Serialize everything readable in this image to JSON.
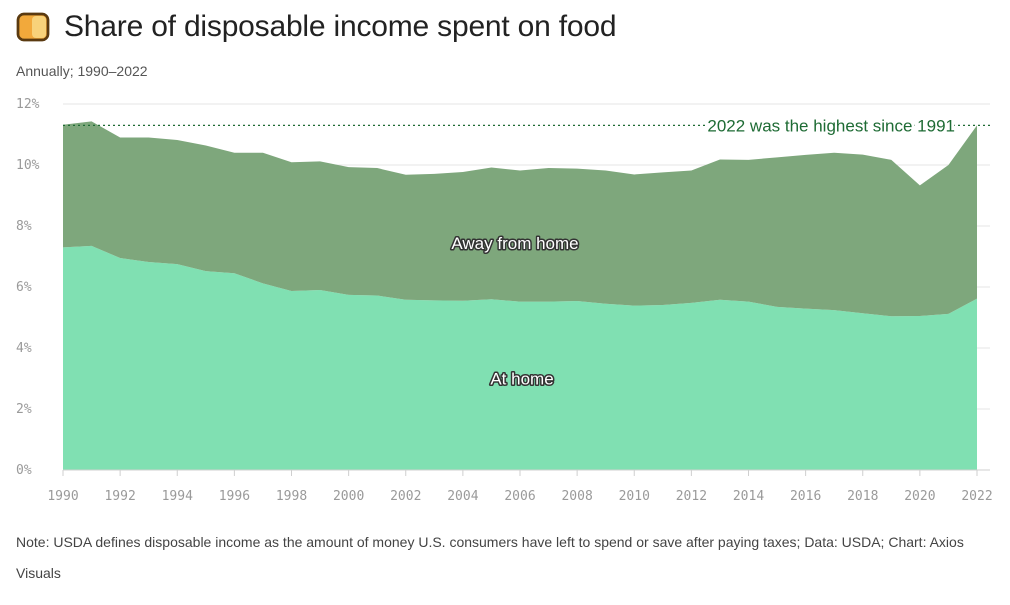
{
  "header": {
    "icon": "bread-icon",
    "title": "Share of disposable income spent on food",
    "subtitle": "Annually; 1990–2022"
  },
  "note": "Note: USDA defines disposable income as the amount of money U.S. consumers have left to spend or save after paying taxes; Data: USDA; Chart: Axios Visuals",
  "colors": {
    "at_home": "#80e0b2",
    "away_from_home": "#7ea77c",
    "annotation": "#1e6b34",
    "grid": "#e6e6e6"
  },
  "chart_data": {
    "type": "area",
    "stacked": true,
    "title": "Share of disposable income spent on food",
    "subtitle": "Annually; 1990–2022",
    "x": [
      1990,
      1991,
      1992,
      1993,
      1994,
      1995,
      1996,
      1997,
      1998,
      1999,
      2000,
      2001,
      2002,
      2003,
      2004,
      2005,
      2006,
      2007,
      2008,
      2009,
      2010,
      2011,
      2012,
      2013,
      2014,
      2015,
      2016,
      2017,
      2018,
      2019,
      2020,
      2021,
      2022
    ],
    "x_ticks": [
      1990,
      1992,
      1994,
      1996,
      1998,
      2000,
      2002,
      2004,
      2006,
      2008,
      2010,
      2012,
      2014,
      2016,
      2018,
      2020,
      2022
    ],
    "ylim": [
      0,
      12
    ],
    "y_ticks": [
      0,
      2,
      4,
      6,
      8,
      10,
      12
    ],
    "y_tick_labels": [
      "0%",
      "2%",
      "4%",
      "6%",
      "8%",
      "10%",
      "12%"
    ],
    "grid": true,
    "series": [
      {
        "name": "At home",
        "values": [
          7.3,
          7.35,
          6.95,
          6.82,
          6.75,
          6.52,
          6.45,
          6.12,
          5.87,
          5.9,
          5.74,
          5.72,
          5.58,
          5.56,
          5.55,
          5.6,
          5.52,
          5.52,
          5.54,
          5.45,
          5.39,
          5.41,
          5.48,
          5.58,
          5.52,
          5.35,
          5.29,
          5.24,
          5.14,
          5.04,
          5.05,
          5.12,
          5.62
        ]
      },
      {
        "name": "Away from home",
        "values": [
          4.02,
          4.08,
          3.95,
          4.08,
          4.07,
          4.12,
          3.95,
          4.28,
          4.22,
          4.22,
          4.19,
          4.18,
          4.1,
          4.15,
          4.22,
          4.32,
          4.3,
          4.38,
          4.34,
          4.37,
          4.3,
          4.35,
          4.34,
          4.6,
          4.65,
          4.9,
          5.04,
          5.16,
          5.2,
          5.13,
          4.28,
          4.88,
          5.68
        ]
      }
    ],
    "annotation": {
      "text": "2022 was the highest since 1991",
      "value": 11.3
    }
  }
}
